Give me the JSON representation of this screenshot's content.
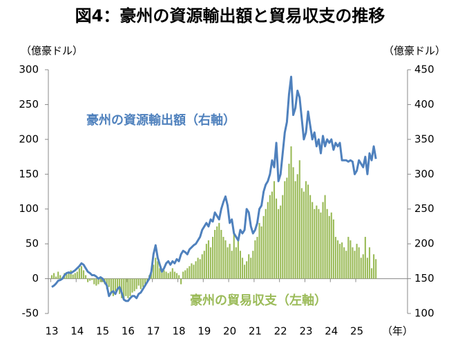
{
  "chart_data": {
    "type": "combo",
    "title": "図4：豪州の資源輸出額と貿易収支の推移",
    "y_label": "（億豪ドル）",
    "y2_label": "（億豪ドル）",
    "x_label": "（年）",
    "categories": [
      "13",
      null,
      null,
      null,
      null,
      null,
      null,
      null,
      null,
      null,
      null,
      null,
      "14",
      null,
      null,
      null,
      null,
      null,
      null,
      null,
      null,
      null,
      null,
      null,
      "15",
      null,
      null,
      null,
      null,
      null,
      null,
      null,
      null,
      null,
      null,
      null,
      "16",
      null,
      null,
      null,
      null,
      null,
      null,
      null,
      null,
      null,
      null,
      null,
      "17",
      null,
      null,
      null,
      null,
      null,
      null,
      null,
      null,
      null,
      null,
      null,
      "18",
      null,
      null,
      null,
      null,
      null,
      null,
      null,
      null,
      null,
      null,
      null,
      "19",
      null,
      null,
      null,
      null,
      null,
      null,
      null,
      null,
      null,
      null,
      null,
      "20",
      null,
      null,
      null,
      null,
      null,
      null,
      null,
      null,
      null,
      null,
      null,
      "21",
      null,
      null,
      null,
      null,
      null,
      null,
      null,
      null,
      null,
      null,
      null,
      "22",
      null,
      null,
      null,
      null,
      null,
      null,
      null,
      null,
      null,
      null,
      null,
      "23",
      null,
      null,
      null,
      null,
      null,
      null,
      null,
      null,
      null,
      null,
      null,
      "24",
      null,
      null,
      null,
      null,
      null,
      null,
      null,
      null,
      null,
      null,
      null,
      "25",
      null,
      null,
      null,
      null,
      null,
      null,
      null,
      null,
      null
    ],
    "series": [
      {
        "name": "豪州の貿易収支（左軸）",
        "type": "bar",
        "color": "#9bbb59",
        "values": [
          5,
          8,
          3,
          10,
          5,
          2,
          8,
          6,
          10,
          12,
          6,
          8,
          10,
          15,
          18,
          12,
          5,
          -5,
          -3,
          -2,
          -8,
          -10,
          -8,
          -5,
          -5,
          -8,
          -15,
          -12,
          -20,
          -25,
          -18,
          -15,
          -22,
          -28,
          -30,
          -25,
          -28,
          -25,
          -20,
          -18,
          -15,
          -10,
          -15,
          -12,
          -8,
          -5,
          5,
          10,
          20,
          30,
          25,
          15,
          10,
          12,
          10,
          8,
          10,
          15,
          10,
          8,
          5,
          -8,
          10,
          12,
          15,
          18,
          22,
          20,
          25,
          30,
          28,
          35,
          40,
          50,
          55,
          45,
          60,
          70,
          75,
          80,
          70,
          60,
          55,
          45,
          50,
          40,
          65,
          45,
          55,
          40,
          30,
          20,
          25,
          35,
          30,
          40,
          55,
          60,
          80,
          75,
          90,
          100,
          110,
          120,
          125,
          140,
          115,
          100,
          105,
          120,
          140,
          145,
          165,
          190,
          160,
          140,
          150,
          170,
          130,
          125,
          140,
          135,
          120,
          110,
          100,
          105,
          100,
          95,
          110,
          120,
          100,
          90,
          95,
          85,
          60,
          55,
          50,
          52,
          45,
          40,
          60,
          55,
          45,
          40,
          50,
          45,
          30,
          35,
          60,
          30,
          45,
          15,
          35,
          28
        ]
      },
      {
        "name": "豪州の資源輸出額（右軸）",
        "type": "line",
        "axis": "y2",
        "color": "#4f81bd",
        "values": [
          138,
          140,
          143,
          147,
          148,
          150,
          155,
          158,
          159,
          158,
          160,
          162,
          165,
          168,
          172,
          170,
          165,
          160,
          158,
          155,
          155,
          153,
          150,
          152,
          150,
          145,
          140,
          125,
          130,
          132,
          128,
          135,
          138,
          130,
          120,
          118,
          118,
          122,
          125,
          125,
          122,
          128,
          130,
          135,
          140,
          145,
          150,
          160,
          185,
          198,
          180,
          170,
          160,
          165,
          172,
          175,
          170,
          175,
          172,
          178,
          175,
          185,
          190,
          188,
          185,
          192,
          195,
          198,
          200,
          205,
          210,
          220,
          225,
          230,
          225,
          235,
          232,
          245,
          240,
          235,
          250,
          260,
          268,
          255,
          230,
          235,
          215,
          210,
          205,
          220,
          215,
          220,
          250,
          245,
          225,
          215,
          220,
          230,
          250,
          255,
          275,
          285,
          290,
          300,
          320,
          310,
          345,
          290,
          300,
          330,
          360,
          375,
          415,
          440,
          385,
          395,
          420,
          410,
          380,
          350,
          360,
          390,
          370,
          350,
          360,
          340,
          350,
          330,
          355,
          340,
          350,
          345,
          350,
          335,
          345,
          340,
          345,
          320,
          320,
          320,
          318,
          320,
          318,
          300,
          305,
          320,
          315,
          310,
          325,
          300,
          330,
          320,
          340,
          322
        ]
      }
    ],
    "ylim": [
      -50,
      300
    ],
    "yticks": [
      -50,
      0,
      50,
      100,
      150,
      200,
      250,
      300
    ],
    "y2lim": [
      100,
      450
    ],
    "y2ticks": [
      100,
      150,
      200,
      250,
      300,
      350,
      400,
      450
    ],
    "grid": false
  }
}
